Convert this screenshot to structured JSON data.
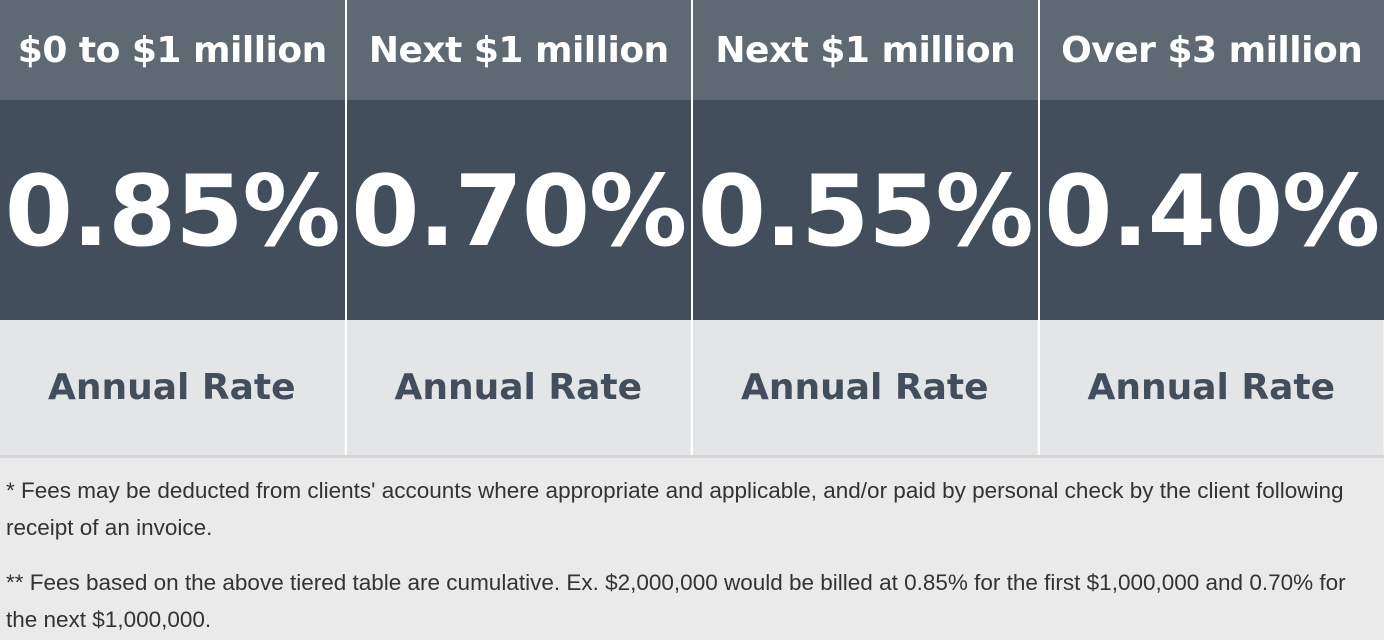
{
  "tiers": [
    {
      "range": "$0 to $1 million",
      "rate": "0.85%",
      "label": "Annual Rate"
    },
    {
      "range": "Next $1 million",
      "rate": "0.70%",
      "label": "Annual Rate"
    },
    {
      "range": "Next $1 million",
      "rate": "0.55%",
      "label": "Annual Rate"
    },
    {
      "range": "Over $3 million",
      "rate": "0.40%",
      "label": "Annual Rate"
    }
  ],
  "notes": [
    "* Fees may be deducted from clients' accounts where appropriate and applicable, and/or paid by personal check by the client following receipt of an invoice.",
    "** Fees based on the above tiered table are cumulative. Ex. $2,000,000 would be billed at 0.85% for the first $1,000,000 and 0.70% for the next $1,000,000."
  ],
  "colors": {
    "header_bg": "#5f6974",
    "rate_bg": "#424e5b",
    "label_bg": "#e4e5e7",
    "label_text": "#424e5b",
    "page_bg": "#eaeaeb"
  }
}
